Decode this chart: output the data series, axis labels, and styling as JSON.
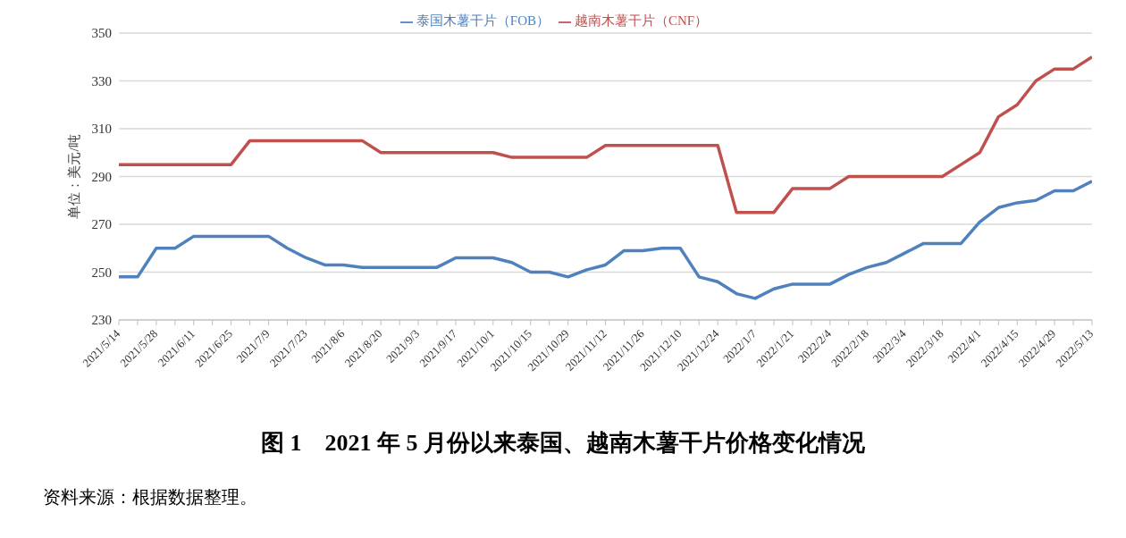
{
  "chart_data": {
    "type": "line",
    "title": "图 1　2021 年 5 月份以来泰国、越南木薯干片价格变化情况",
    "ylabel": "单位：美元/吨",
    "annotations": [
      "资料来源：根据数据整理。"
    ],
    "categories": [
      "2021/5/14",
      null,
      "2021/5/28",
      null,
      "2021/6/11",
      null,
      "2021/6/25",
      null,
      "2021/7/9",
      null,
      "2021/7/23",
      null,
      "2021/8/6",
      null,
      "2021/8/20",
      null,
      "2021/9/3",
      null,
      "2021/9/17",
      null,
      "2021/10/1",
      null,
      "2021/10/15",
      null,
      "2021/10/29",
      null,
      "2021/11/12",
      null,
      "2021/11/26",
      null,
      "2021/12/10",
      null,
      "2021/12/24",
      null,
      "2022/1/7",
      null,
      "2022/1/21",
      null,
      "2022/2/4",
      null,
      "2022/2/18",
      null,
      "2022/3/4",
      null,
      "2022/3/18",
      null,
      "2022/4/1",
      null,
      "2022/4/15",
      null,
      "2022/4/29",
      null,
      "2022/5/13"
    ],
    "series": [
      {
        "name": "泰国木薯干片（FOB）",
        "color": "#4f81bd",
        "values": [
          248,
          248,
          260,
          260,
          265,
          265,
          265,
          265,
          265,
          260,
          256,
          253,
          253,
          252,
          252,
          252,
          252,
          252,
          256,
          256,
          256,
          254,
          250,
          250,
          248,
          251,
          253,
          259,
          259,
          260,
          260,
          248,
          246,
          241,
          239,
          243,
          245,
          245,
          245,
          249,
          252,
          254,
          258,
          262,
          262,
          262,
          271,
          277,
          279,
          280,
          284,
          284,
          288
        ]
      },
      {
        "name": "越南木薯干片（CNF）",
        "color": "#c0504d",
        "values": [
          295,
          295,
          295,
          295,
          295,
          295,
          295,
          305,
          305,
          305,
          305,
          305,
          305,
          305,
          300,
          300,
          300,
          300,
          300,
          300,
          300,
          298,
          298,
          298,
          298,
          298,
          303,
          303,
          303,
          303,
          303,
          303,
          303,
          275,
          275,
          275,
          285,
          285,
          285,
          290,
          290,
          290,
          290,
          290,
          290,
          295,
          300,
          315,
          320,
          330,
          335,
          335,
          340
        ]
      }
    ],
    "ylim": [
      230,
      350
    ],
    "yticks": [
      230,
      250,
      270,
      290,
      310,
      330,
      350
    ],
    "grid": "y",
    "legend": "top",
    "marker": "none",
    "line_style": "solid"
  }
}
